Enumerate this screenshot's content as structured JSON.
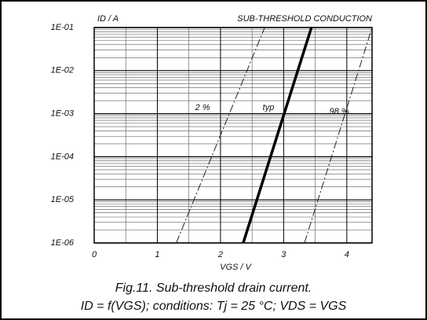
{
  "chart_data": {
    "type": "line",
    "title": "SUB-THRESHOLD CONDUCTION",
    "y_label": "ID / A",
    "x_label": "VGS / V",
    "caption": [
      "Fig.11.   Sub-threshold drain current.",
      "ID = f(VGS); conditions: Tj = 25 °C; VDS = VGS"
    ],
    "log_y": true,
    "grid": true,
    "xlim": [
      0,
      4.4
    ],
    "xticks": [
      0,
      1,
      2,
      3,
      4
    ],
    "ylim": [
      1e-06,
      0.1
    ],
    "yticks": [
      {
        "value": 1e-06,
        "label": "1E-06"
      },
      {
        "value": 1e-05,
        "label": "1E-05"
      },
      {
        "value": 0.0001,
        "label": "1E-04"
      },
      {
        "value": 0.001,
        "label": "1E-03"
      },
      {
        "value": 0.01,
        "label": "1E-02"
      },
      {
        "value": 0.1,
        "label": "1E-01"
      }
    ],
    "series": [
      {
        "name": "2 %",
        "color": "#222",
        "dashed": true,
        "width": 1,
        "x": [
          1.3,
          2.7
        ],
        "values": [
          1e-06,
          0.1
        ]
      },
      {
        "name": "typ",
        "color": "#000",
        "dashed": false,
        "width": 3.5,
        "x": [
          2.36,
          3.44
        ],
        "values": [
          1e-06,
          0.1
        ]
      },
      {
        "name": "98 %",
        "color": "#222",
        "dashed": true,
        "width": 1,
        "x": [
          3.33,
          4.4
        ],
        "values": [
          1e-06,
          0.1
        ]
      }
    ]
  }
}
